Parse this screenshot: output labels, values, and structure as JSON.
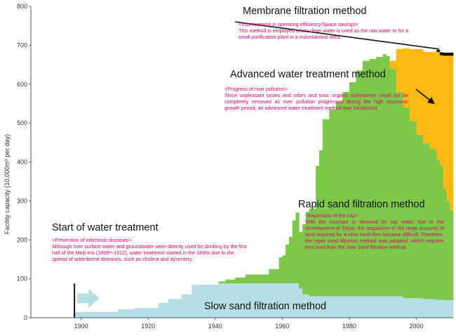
{
  "chart_data": {
    "type": "area",
    "ylabel": "Facility capacity (10,000m³ per day)",
    "xlim": [
      1885,
      2011
    ],
    "ylim": [
      0,
      800
    ],
    "x_ticks": [
      1900,
      1920,
      1940,
      1960,
      1980,
      2000
    ],
    "y_ticks": [
      0,
      100,
      200,
      300,
      400,
      500,
      600,
      700,
      800
    ],
    "grid": false,
    "colors": {
      "slow_sand": "#b5dfe4",
      "rapid_sand": "#7cc94a",
      "advanced": "#fdb813",
      "membrane": "#111111",
      "annotation_text": "#e6006e"
    },
    "steps": [
      {
        "x": 1898,
        "slow": 15,
        "rapid": 0,
        "advanced": 0,
        "membrane": 0
      },
      {
        "x": 1911,
        "slow": 22,
        "rapid": 0,
        "advanced": 0,
        "membrane": 0
      },
      {
        "x": 1916,
        "slow": 25,
        "rapid": 0,
        "advanced": 0,
        "membrane": 0
      },
      {
        "x": 1923,
        "slow": 38,
        "rapid": 0,
        "advanced": 0,
        "membrane": 0
      },
      {
        "x": 1926,
        "slow": 48,
        "rapid": 0,
        "advanced": 0,
        "membrane": 0
      },
      {
        "x": 1930,
        "slow": 60,
        "rapid": 0,
        "advanced": 0,
        "membrane": 0
      },
      {
        "x": 1933,
        "slow": 85,
        "rapid": 0,
        "advanced": 0,
        "membrane": 0
      },
      {
        "x": 1941,
        "slow": 88,
        "rapid": 5,
        "advanced": 0,
        "membrane": 0
      },
      {
        "x": 1943,
        "slow": 88,
        "rapid": 10,
        "advanced": 0,
        "membrane": 0
      },
      {
        "x": 1946,
        "slow": 88,
        "rapid": 15,
        "advanced": 0,
        "membrane": 0
      },
      {
        "x": 1949,
        "slow": 88,
        "rapid": 23,
        "advanced": 0,
        "membrane": 0
      },
      {
        "x": 1956,
        "slow": 88,
        "rapid": 37,
        "advanced": 0,
        "membrane": 0
      },
      {
        "x": 1959,
        "slow": 88,
        "rapid": 67,
        "advanced": 0,
        "membrane": 0
      },
      {
        "x": 1960,
        "slow": 88,
        "rapid": 72,
        "advanced": 0,
        "membrane": 0
      },
      {
        "x": 1961,
        "slow": 88,
        "rapid": 100,
        "advanced": 0,
        "membrane": 0
      },
      {
        "x": 1962,
        "slow": 88,
        "rapid": 120,
        "advanced": 0,
        "membrane": 0
      },
      {
        "x": 1963,
        "slow": 88,
        "rapid": 162,
        "advanced": 0,
        "membrane": 0
      },
      {
        "x": 1964,
        "slow": 88,
        "rapid": 182,
        "advanced": 0,
        "membrane": 0
      },
      {
        "x": 1965,
        "slow": 75,
        "rapid": 145,
        "advanced": 0,
        "membrane": 0
      },
      {
        "x": 1966,
        "slow": 60,
        "rapid": 180,
        "advanced": 0,
        "membrane": 0
      },
      {
        "x": 1967,
        "slow": 60,
        "rapid": 212,
        "advanced": 0,
        "membrane": 0
      },
      {
        "x": 1968,
        "slow": 55,
        "rapid": 225,
        "advanced": 0,
        "membrane": 0
      },
      {
        "x": 1970,
        "slow": 55,
        "rapid": 335,
        "advanced": 0,
        "membrane": 0
      },
      {
        "x": 1971,
        "slow": 55,
        "rapid": 375,
        "advanced": 0,
        "membrane": 0
      },
      {
        "x": 1972,
        "slow": 55,
        "rapid": 455,
        "advanced": 0,
        "membrane": 0
      },
      {
        "x": 1974,
        "slow": 55,
        "rapid": 480,
        "advanced": 0,
        "membrane": 0
      },
      {
        "x": 1976,
        "slow": 55,
        "rapid": 500,
        "advanced": 0,
        "membrane": 0
      },
      {
        "x": 1978,
        "slow": 55,
        "rapid": 525,
        "advanced": 0,
        "membrane": 0
      },
      {
        "x": 1980,
        "slow": 55,
        "rapid": 550,
        "advanced": 0,
        "membrane": 0
      },
      {
        "x": 1982,
        "slow": 55,
        "rapid": 580,
        "advanced": 0,
        "membrane": 0
      },
      {
        "x": 1984,
        "slow": 55,
        "rapid": 605,
        "advanced": 0,
        "membrane": 0
      },
      {
        "x": 1986,
        "slow": 55,
        "rapid": 610,
        "advanced": 0,
        "membrane": 0
      },
      {
        "x": 1988,
        "slow": 55,
        "rapid": 615,
        "advanced": 0,
        "membrane": 0
      },
      {
        "x": 1990,
        "slow": 55,
        "rapid": 622,
        "advanced": 0,
        "membrane": 0
      },
      {
        "x": 1991,
        "slow": 55,
        "rapid": 617,
        "advanced": 0,
        "membrane": 0
      },
      {
        "x": 1992,
        "slow": 55,
        "rapid": 585,
        "advanced": 20,
        "membrane": 0
      },
      {
        "x": 1994,
        "slow": 55,
        "rapid": 525,
        "advanced": 110,
        "membrane": 0
      },
      {
        "x": 1996,
        "slow": 50,
        "rapid": 490,
        "advanced": 152,
        "membrane": 0
      },
      {
        "x": 1998,
        "slow": 50,
        "rapid": 455,
        "advanced": 185,
        "membrane": 0
      },
      {
        "x": 2000,
        "slow": 50,
        "rapid": 420,
        "advanced": 220,
        "membrane": 0
      },
      {
        "x": 2002,
        "slow": 48,
        "rapid": 400,
        "advanced": 235,
        "membrane": 0
      },
      {
        "x": 2004,
        "slow": 48,
        "rapid": 385,
        "advanced": 250,
        "membrane": 0
      },
      {
        "x": 2006,
        "slow": 46,
        "rapid": 360,
        "advanced": 277,
        "membrane": 5
      },
      {
        "x": 2007,
        "slow": 46,
        "rapid": 345,
        "advanced": 283,
        "membrane": 8
      },
      {
        "x": 2008,
        "slow": 45,
        "rapid": 285,
        "advanced": 343,
        "membrane": 8
      },
      {
        "x": 2009,
        "slow": 45,
        "rapid": 255,
        "advanced": 373,
        "membrane": 8
      },
      {
        "x": 2010,
        "slow": 45,
        "rapid": 230,
        "advanced": 398,
        "membrane": 8
      },
      {
        "x": 2011,
        "slow": 45,
        "rapid": 230,
        "advanced": 398,
        "membrane": 8
      }
    ],
    "start_year": 1898
  },
  "annotations": {
    "membrane": {
      "title": "Membrane filtration method",
      "heading": "<Improvement in operating efficiency/Space savings>",
      "body": "This method is employed when clean water is used as the raw water or for a small purification plant in a mountainous area."
    },
    "advanced": {
      "title": "Advanced water treatment method",
      "heading": "<Progress of river pollution>",
      "body": "Since unpleasant tastes and odors and toxic organic substances could not be completely removed as river pollution progressed during the high economic growth period, an advanced water treatment method was introduced."
    },
    "rapid": {
      "title": "Rapid sand filtration method",
      "heading": "<Expansion of the city>",
      "body": "With the increase in demand for tap water due to the development of Tokyo, the acquisition of the large amounts of land required for a slow sand filter became difficult. Therefore, the rapid sand filtration method was adopted, which requires less land than the slow sand filtration method."
    },
    "start": {
      "title": "Start of water treatment",
      "heading": "<Prevention of infectious diseases>",
      "body": "Although river surface water and groundwater were directly used for drinking by the first half of the Meiji era (1868〜1912), water treatment started in the 1890s due to the spread of waterborne diseases, such as cholera and dysentery."
    },
    "slow": {
      "title": "Slow sand filtration method"
    }
  }
}
